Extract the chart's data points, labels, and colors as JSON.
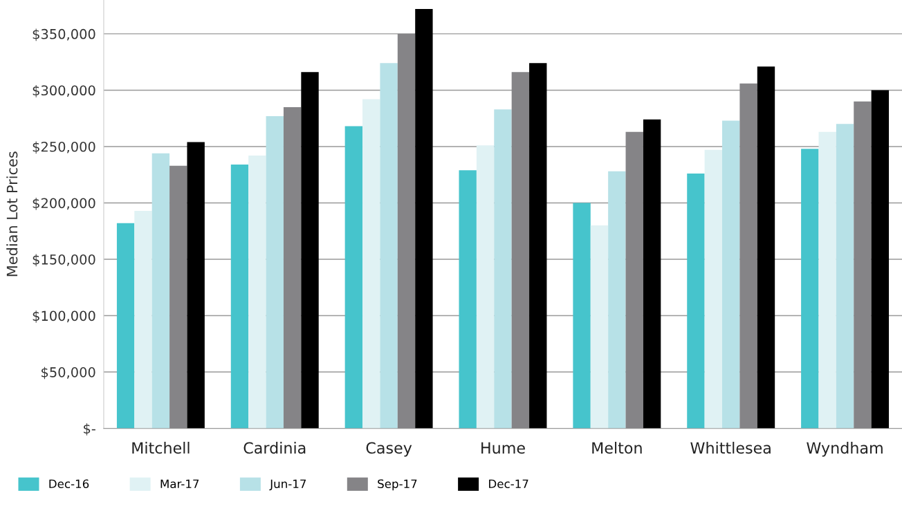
{
  "chart_data": {
    "type": "bar",
    "ylabel": "Median Lot Prices",
    "categories": [
      "Mitchell",
      "Cardinia",
      "Casey",
      "Hume",
      "Melton",
      "Whittlesea",
      "Wyndham"
    ],
    "series": [
      {
        "name": "Dec-16",
        "color": "#46c4cc",
        "values": [
          182000,
          234000,
          268000,
          229000,
          200000,
          226000,
          248000
        ]
      },
      {
        "name": "Mar-17",
        "color": "#e0f2f4",
        "values": [
          193000,
          242000,
          292000,
          251000,
          180000,
          247000,
          263000
        ]
      },
      {
        "name": "Jun-17",
        "color": "#b7e1e7",
        "values": [
          244000,
          277000,
          324000,
          283000,
          228000,
          273000,
          270000
        ]
      },
      {
        "name": "Sep-17",
        "color": "#858487",
        "values": [
          233000,
          285000,
          350000,
          316000,
          263000,
          306000,
          290000
        ]
      },
      {
        "name": "Dec-17",
        "color": "#000000",
        "values": [
          254000,
          316000,
          372000,
          324000,
          274000,
          321000,
          300000
        ]
      }
    ],
    "yticks": [
      {
        "value": 0,
        "label": "$-"
      },
      {
        "value": 50000,
        "label": "$50,000"
      },
      {
        "value": 100000,
        "label": "$100,000"
      },
      {
        "value": 150000,
        "label": "$150,000"
      },
      {
        "value": 200000,
        "label": "$200,000"
      },
      {
        "value": 250000,
        "label": "$250,000"
      },
      {
        "value": 300000,
        "label": "$300,000"
      },
      {
        "value": 350000,
        "label": "$350,000"
      }
    ],
    "ylim": [
      0,
      380000
    ],
    "grid": "y",
    "legend": "bottom left"
  }
}
